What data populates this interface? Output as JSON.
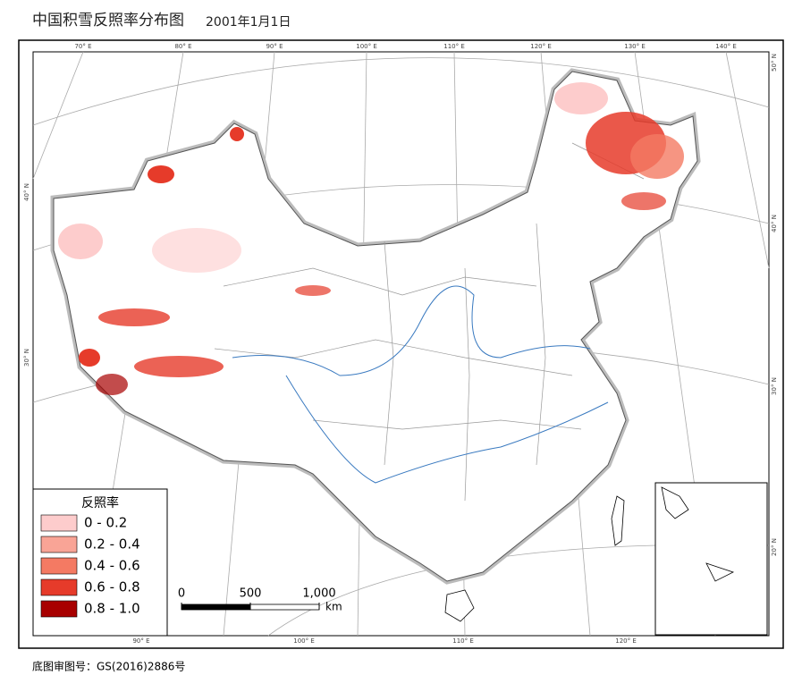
{
  "header": {
    "title": "中国积雪反照率分布图",
    "date": "2001年1月1日"
  },
  "graticule": {
    "top": [
      "70° E",
      "80° E",
      "90° E",
      "100° E",
      "110° E",
      "120° E",
      "130° E",
      "140° E"
    ],
    "bottom": [
      "90° E",
      "100° E",
      "110° E",
      "120° E"
    ],
    "left": [
      "40° N",
      "30° N"
    ],
    "right": [
      "50° N",
      "40° N",
      "30° N",
      "20° N"
    ]
  },
  "legend": {
    "title": "反照率",
    "items": [
      {
        "label": "0 - 0.2",
        "color": "#fdcccc"
      },
      {
        "label": "0.2 - 0.4",
        "color": "#f9a496"
      },
      {
        "label": "0.4 - 0.6",
        "color": "#f47a63"
      },
      {
        "label": "0.6 - 0.8",
        "color": "#e63b2a"
      },
      {
        "label": "0.8 - 1.0",
        "color": "#a80000"
      }
    ]
  },
  "scale_bar": {
    "ticks": [
      0,
      500,
      {
        "value": 1000,
        "label": "1,000"
      }
    ],
    "unit": "km"
  },
  "footer": "底图审图号：GS(2016)2886号"
}
